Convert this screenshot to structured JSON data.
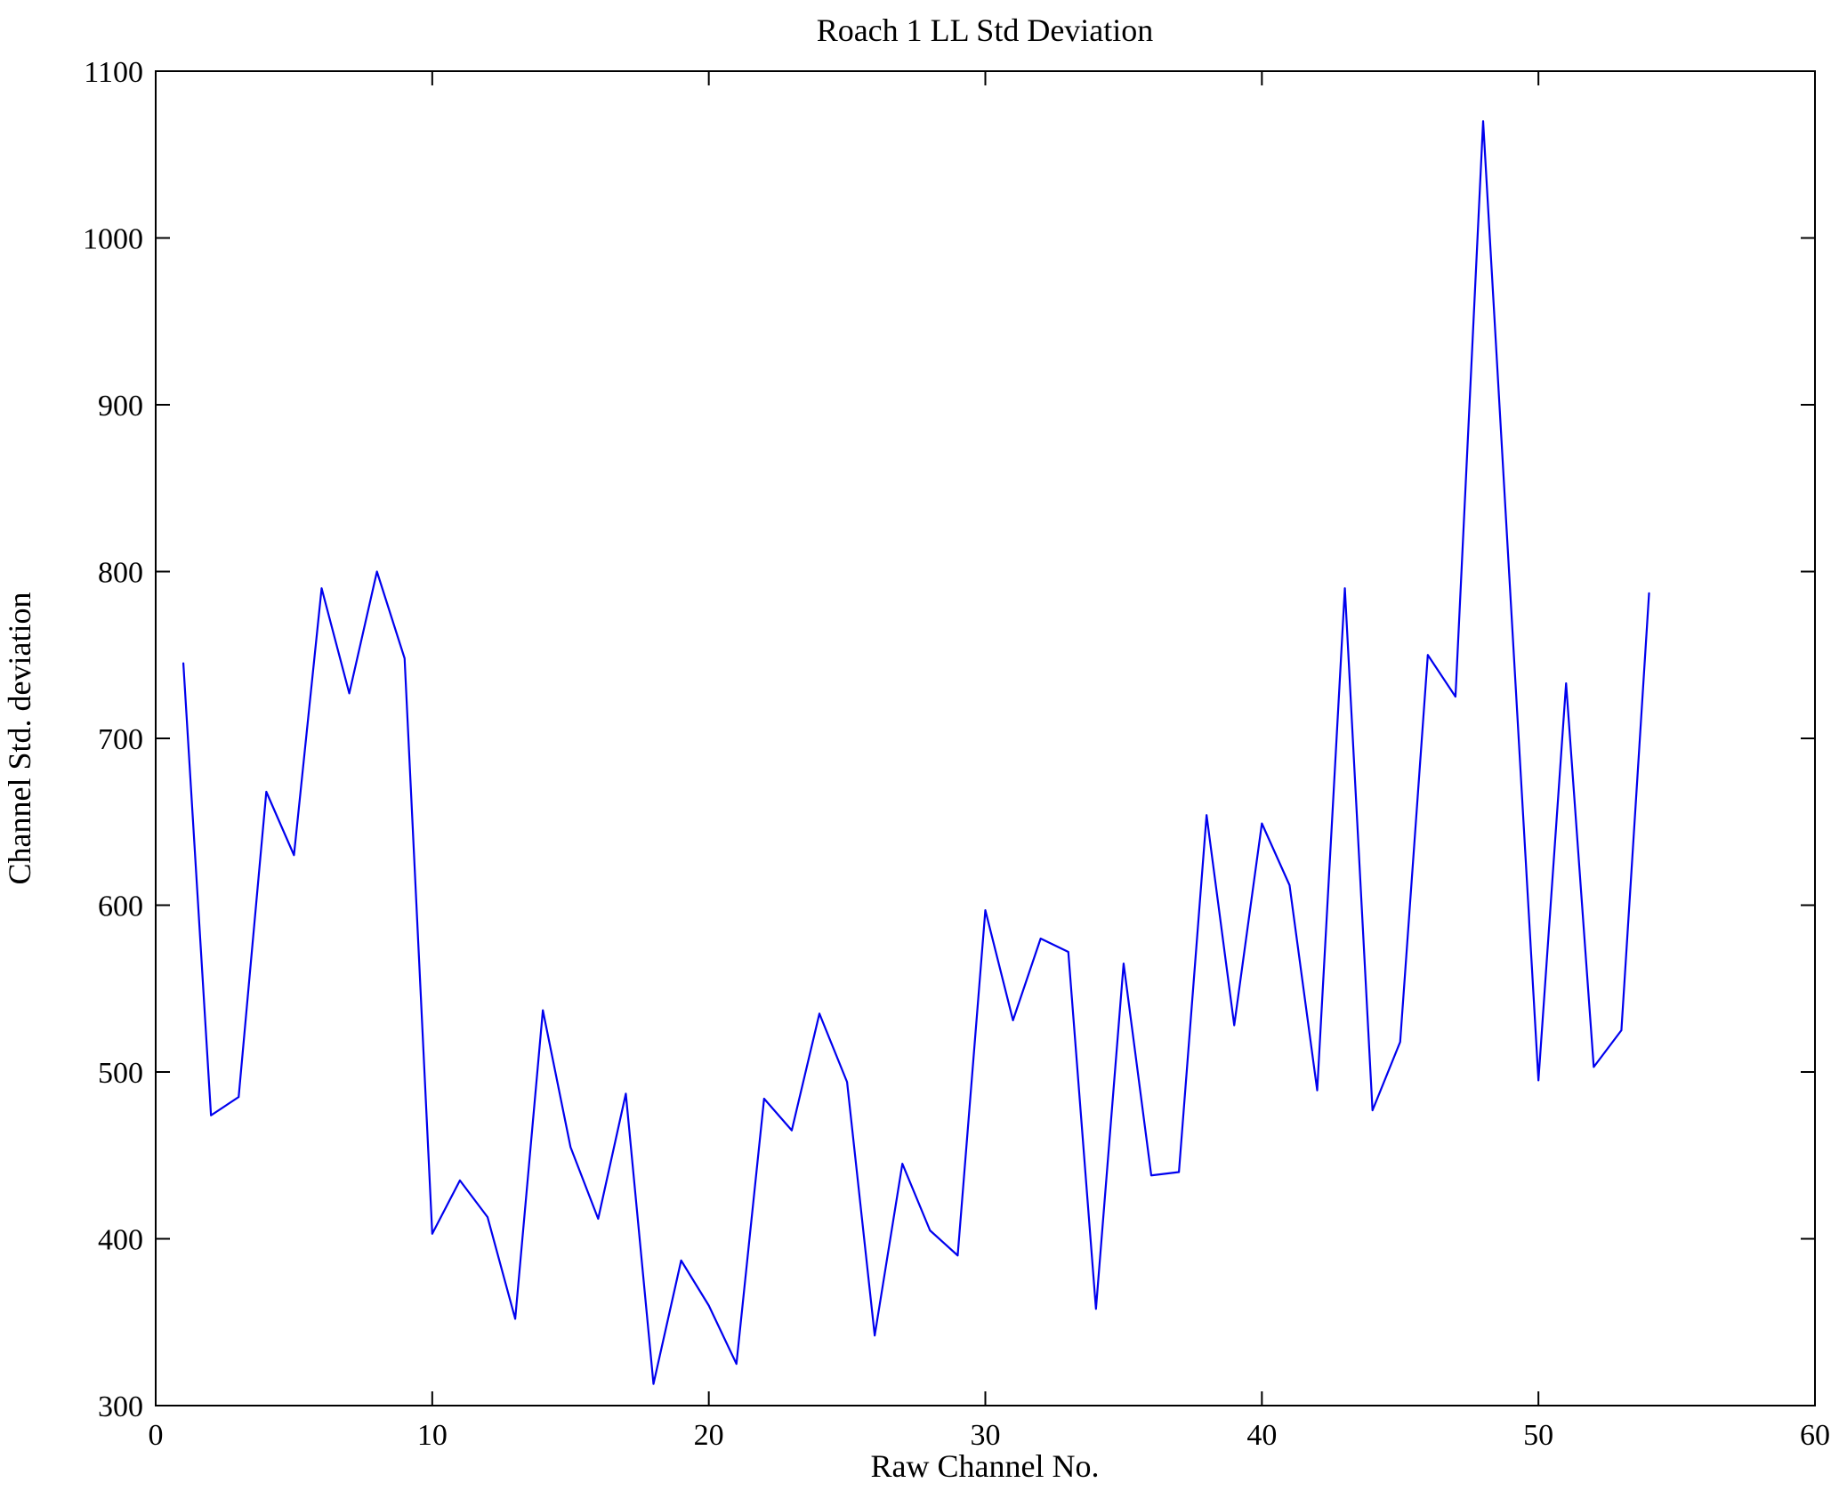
{
  "figure": {
    "title": "Roach 1 LL Std Deviation",
    "xlabel": "Raw Channel No.",
    "ylabel": "Channel Std. deviation"
  },
  "chart_data": {
    "type": "line",
    "title": "Roach 1 LL Std Deviation",
    "xlabel": "Raw Channel No.",
    "ylabel": "Channel Std. deviation",
    "x": [
      1,
      2,
      3,
      4,
      5,
      6,
      7,
      8,
      9,
      10,
      11,
      12,
      13,
      14,
      15,
      16,
      17,
      18,
      19,
      20,
      21,
      22,
      23,
      24,
      25,
      26,
      27,
      28,
      29,
      30,
      31,
      32,
      33,
      34,
      35,
      36,
      37,
      38,
      39,
      40,
      41,
      42,
      43,
      44,
      45,
      46,
      47,
      48,
      49,
      50,
      51,
      52,
      53,
      54
    ],
    "values": [
      745,
      474,
      485,
      668,
      630,
      790,
      727,
      800,
      748,
      403,
      435,
      413,
      352,
      537,
      455,
      412,
      487,
      313,
      387,
      360,
      325,
      484,
      465,
      535,
      494,
      342,
      445,
      405,
      390,
      597,
      531,
      580,
      572,
      358,
      565,
      438,
      440,
      654,
      528,
      649,
      612,
      489,
      790,
      477,
      518,
      750,
      725,
      1070,
      782,
      495,
      733,
      503,
      525,
      787
    ],
    "xlim": [
      0,
      60
    ],
    "ylim": [
      300,
      1100
    ],
    "xticks": [
      0,
      10,
      20,
      30,
      40,
      50,
      60
    ],
    "yticks": [
      300,
      400,
      500,
      600,
      700,
      800,
      900,
      1000,
      1100
    ],
    "grid": false,
    "legend_position": "none",
    "line_color": "#0000ee",
    "axis_color": "#000000",
    "background_color": "#ffffff"
  }
}
